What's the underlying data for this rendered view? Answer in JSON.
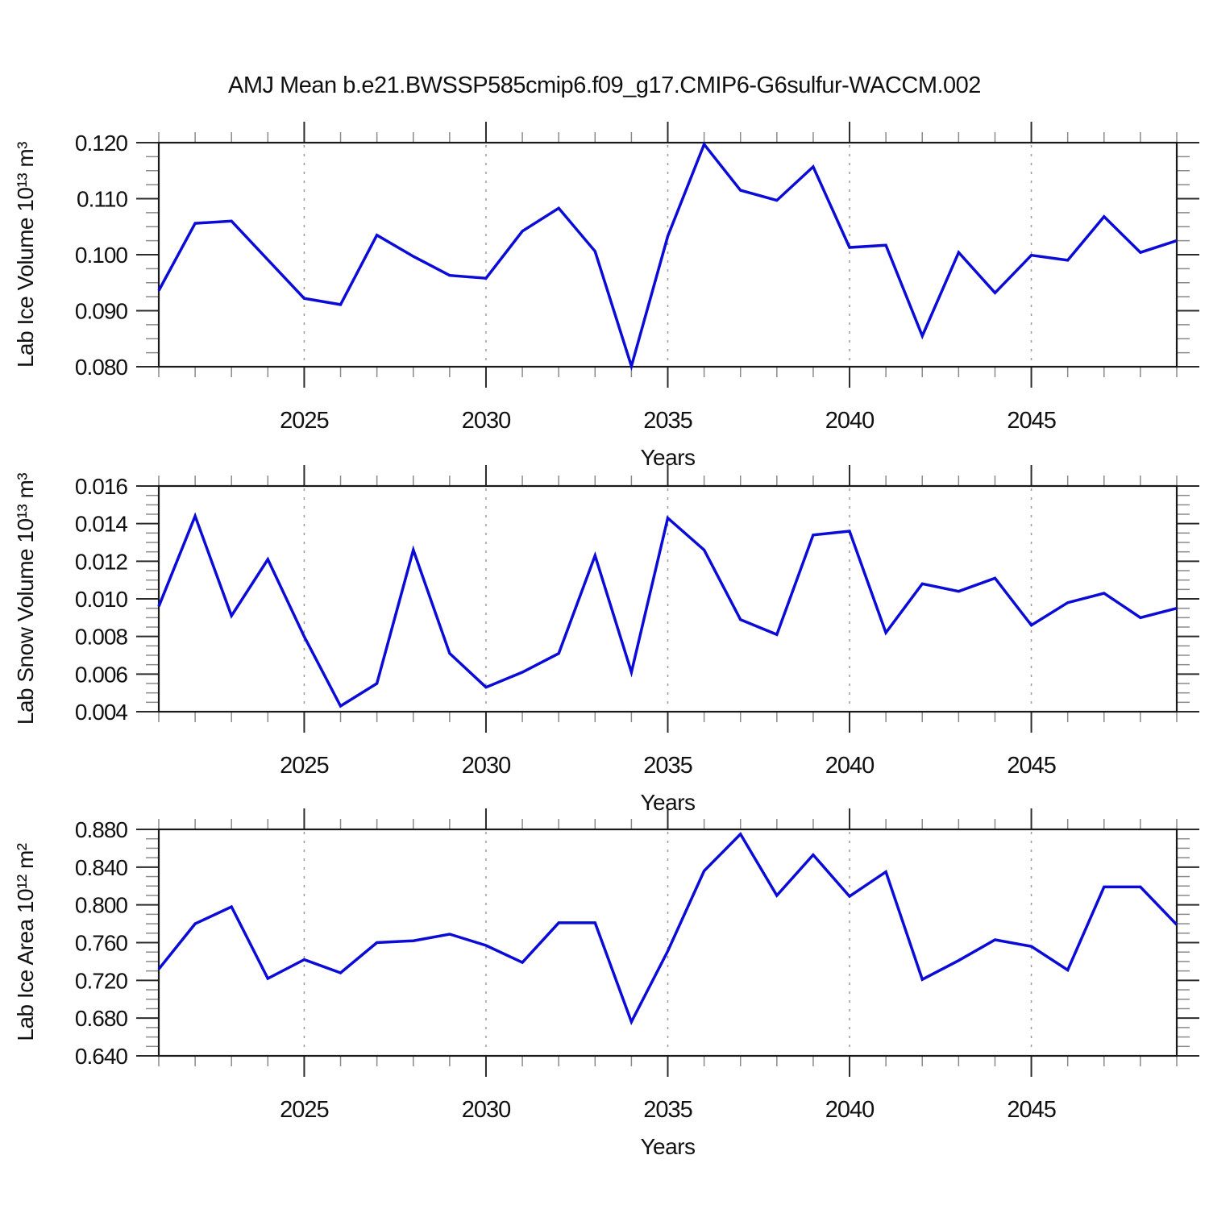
{
  "figure": {
    "title": "AMJ Mean b.e21.BWSSP585cmip6.f09_g17.CMIP6-G6sulfur-WACCM.002"
  },
  "colors": {
    "line": "#0b0bd8",
    "frame": "#1a1a1a",
    "tick_major": "#2b2b2b",
    "tick_minor": "#8a8a8a",
    "grid": "#9a9a9a",
    "text": "#111111"
  },
  "chart_data": [
    {
      "id": "ice-volume",
      "type": "line",
      "series_name": "Lab Ice Volume",
      "ylabel": "Lab Ice Volume 10¹³ m³",
      "xlabel": "Years",
      "x": [
        2021,
        2022,
        2023,
        2024,
        2025,
        2026,
        2027,
        2028,
        2029,
        2030,
        2031,
        2032,
        2033,
        2034,
        2035,
        2036,
        2037,
        2038,
        2039,
        2040,
        2041,
        2042,
        2043,
        2044,
        2045,
        2046,
        2047,
        2048,
        2049
      ],
      "values": [
        0.0936,
        0.1056,
        0.106,
        0.0991,
        0.0922,
        0.0911,
        0.1035,
        0.0997,
        0.0963,
        0.0958,
        0.1042,
        0.1083,
        0.1006,
        0.0801,
        0.1033,
        0.1197,
        0.1115,
        0.1097,
        0.1157,
        0.1013,
        0.1017,
        0.0855,
        0.1004,
        0.0932,
        0.0999,
        0.099,
        0.1068,
        0.1004,
        0.1025
      ],
      "ylim": [
        0.08,
        0.12
      ],
      "ytick_step": 0.01,
      "yminor_step": 0.0025,
      "ydecimals": 3,
      "xlim": [
        2021,
        2049
      ],
      "xticks_labeled": [
        2025,
        2030,
        2035,
        2040,
        2045
      ],
      "xminor_step": 1,
      "grid": "vertical dashed lines at labeled years",
      "legend": "none",
      "line_color": "#0b0bd8"
    },
    {
      "id": "snow-volume",
      "type": "line",
      "series_name": "Lab Snow Volume",
      "ylabel": "Lab Snow Volume 10¹³ m³",
      "xlabel": "Years",
      "x": [
        2021,
        2022,
        2023,
        2024,
        2025,
        2026,
        2027,
        2028,
        2029,
        2030,
        2031,
        2032,
        2033,
        2034,
        2035,
        2036,
        2037,
        2038,
        2039,
        2040,
        2041,
        2042,
        2043,
        2044,
        2045,
        2046,
        2047,
        2048,
        2049
      ],
      "values": [
        0.0096,
        0.0144,
        0.0091,
        0.0121,
        0.008,
        0.0043,
        0.0055,
        0.0126,
        0.0071,
        0.0053,
        0.0061,
        0.0071,
        0.0123,
        0.0061,
        0.0143,
        0.0126,
        0.0089,
        0.0081,
        0.0134,
        0.0136,
        0.0082,
        0.0108,
        0.0104,
        0.0111,
        0.0086,
        0.0098,
        0.0103,
        0.009,
        0.0095
      ],
      "ylim": [
        0.004,
        0.016
      ],
      "ytick_step": 0.002,
      "yminor_step": 0.0005,
      "ydecimals": 3,
      "xlim": [
        2021,
        2049
      ],
      "xticks_labeled": [
        2025,
        2030,
        2035,
        2040,
        2045
      ],
      "xminor_step": 1,
      "grid": "vertical dashed lines at labeled years",
      "legend": "none",
      "line_color": "#0b0bd8"
    },
    {
      "id": "ice-area",
      "type": "line",
      "series_name": "Lab Ice Area",
      "ylabel": "Lab Ice Area 10¹² m²",
      "xlabel": "Years",
      "x": [
        2021,
        2022,
        2023,
        2024,
        2025,
        2026,
        2027,
        2028,
        2029,
        2030,
        2031,
        2032,
        2033,
        2034,
        2035,
        2036,
        2037,
        2038,
        2039,
        2040,
        2041,
        2042,
        2043,
        2044,
        2045,
        2046,
        2047,
        2048,
        2049
      ],
      "values": [
        0.732,
        0.78,
        0.798,
        0.722,
        0.742,
        0.728,
        0.76,
        0.762,
        0.769,
        0.757,
        0.739,
        0.781,
        0.781,
        0.676,
        0.751,
        0.836,
        0.875,
        0.81,
        0.853,
        0.809,
        0.835,
        0.721,
        0.741,
        0.763,
        0.756,
        0.731,
        0.819,
        0.819,
        0.779
      ],
      "ylim": [
        0.64,
        0.88
      ],
      "ytick_step": 0.04,
      "yminor_step": 0.01,
      "ydecimals": 3,
      "xlim": [
        2021,
        2049
      ],
      "xticks_labeled": [
        2025,
        2030,
        2035,
        2040,
        2045
      ],
      "xminor_step": 1,
      "grid": "vertical dashed lines at labeled years",
      "legend": "none",
      "line_color": "#0b0bd8"
    }
  ]
}
